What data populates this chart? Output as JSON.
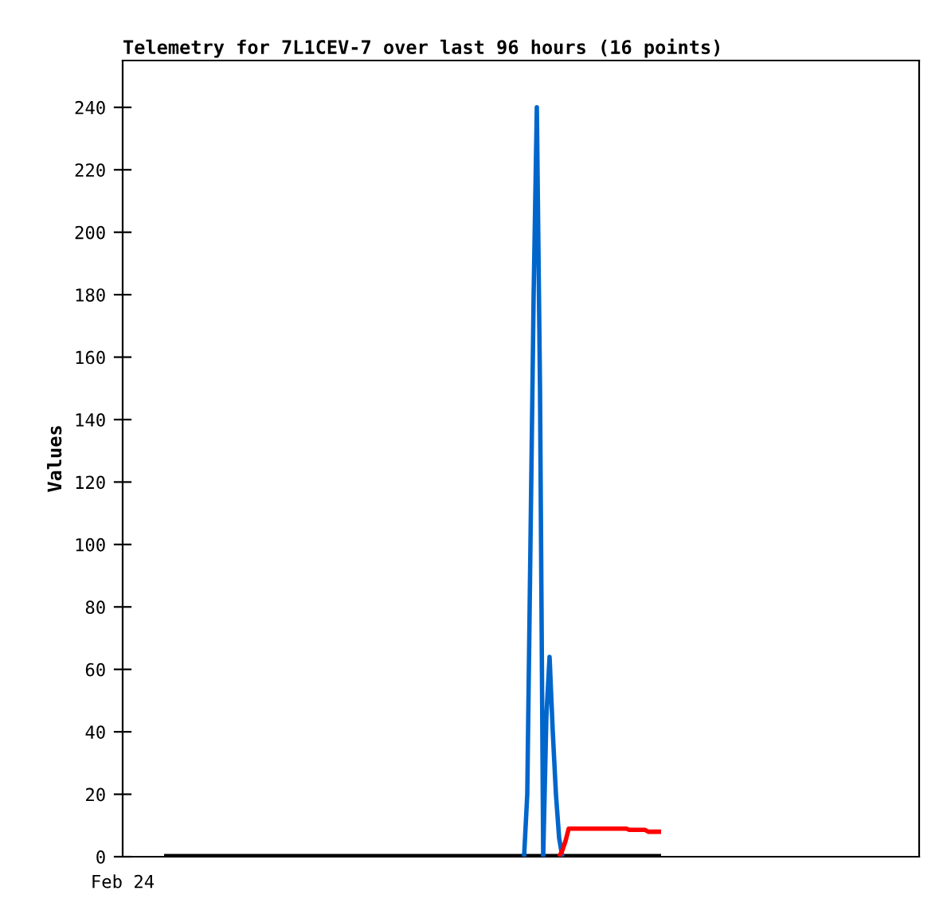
{
  "chart_data": {
    "type": "line",
    "title": "Telemetry for 7L1CEV-7 over last 96 hours (16 points)",
    "ylabel": "Values",
    "annotations": [
      "Feb 24"
    ],
    "categories": [
      null,
      null,
      null,
      null,
      null,
      null,
      null,
      null,
      null,
      null,
      null,
      null,
      null,
      null,
      null,
      null,
      null,
      null,
      null,
      null,
      null,
      null,
      null,
      null,
      null,
      null,
      null,
      null,
      null,
      null,
      null,
      null,
      null,
      null,
      null,
      null,
      null,
      null,
      null,
      null,
      null,
      null,
      null,
      null,
      null,
      null,
      null,
      null,
      null,
      null,
      null,
      null,
      null,
      null,
      null,
      null,
      null,
      null,
      null,
      null,
      null,
      null,
      null,
      null,
      null,
      null,
      null,
      null,
      null,
      null,
      null,
      null,
      null,
      null,
      null,
      null,
      null,
      null,
      null,
      null,
      null,
      null,
      null,
      null,
      null,
      null,
      null,
      null,
      null,
      null,
      null,
      null,
      null,
      null,
      null,
      null,
      null,
      null,
      null,
      null,
      null,
      null,
      null,
      null,
      null,
      null,
      null,
      null,
      null,
      null,
      null,
      null,
      null,
      null,
      null,
      null,
      null,
      null,
      null,
      null,
      null,
      null,
      null,
      null,
      null,
      null,
      null,
      null,
      null,
      null,
      null,
      null,
      null,
      null,
      null,
      null,
      null,
      null,
      null,
      null,
      null,
      null,
      null,
      null,
      null,
      null,
      null,
      null,
      null,
      null,
      null,
      null,
      null,
      null,
      null,
      null,
      null
    ],
    "ylim": [
      0,
      255
    ],
    "yticks": [
      0,
      20,
      40,
      60,
      80,
      100,
      120,
      140,
      160,
      180,
      200,
      220,
      240
    ],
    "marker": "none",
    "line_style": "solid",
    "series": [
      {
        "color": "#000000",
        "values": [
          0,
          0,
          0,
          0,
          0,
          0,
          0,
          0,
          0,
          0,
          0,
          0,
          0,
          0,
          0,
          0,
          0,
          0,
          0,
          0,
          0,
          0,
          0,
          0,
          0,
          0,
          0,
          0,
          0,
          0,
          0,
          0,
          0,
          0,
          0,
          0,
          0,
          0,
          0,
          0,
          0,
          0,
          0,
          0,
          0,
          0,
          0,
          0,
          0,
          0,
          0,
          0,
          0,
          0,
          0,
          0,
          0,
          0,
          0,
          0,
          0,
          0,
          0,
          0,
          0,
          0,
          0,
          0,
          0,
          0,
          0,
          0,
          0,
          0,
          0,
          0,
          0,
          0,
          0,
          0,
          0,
          0,
          0,
          0,
          0,
          0,
          0,
          0,
          0,
          0,
          0,
          0,
          0,
          0,
          0,
          0,
          0,
          0,
          0,
          0,
          0,
          0,
          0,
          0,
          0,
          0,
          0,
          0,
          0,
          0,
          0,
          0,
          0,
          0,
          0,
          0,
          0,
          0,
          0,
          0,
          0,
          0,
          0,
          0,
          0,
          0,
          0,
          0,
          0,
          0,
          0,
          0,
          0,
          0,
          0,
          0,
          0,
          0,
          0,
          0,
          0,
          0,
          0,
          0,
          0,
          0,
          0,
          0,
          0,
          0,
          0,
          0,
          0,
          0,
          0,
          0,
          0
        ]
      },
      {
        "color": "#0066cc",
        "values": [
          null,
          null,
          null,
          null,
          null,
          null,
          null,
          null,
          null,
          null,
          null,
          null,
          null,
          null,
          null,
          null,
          null,
          null,
          null,
          null,
          null,
          null,
          null,
          null,
          null,
          null,
          null,
          null,
          null,
          null,
          null,
          null,
          null,
          null,
          null,
          null,
          null,
          null,
          null,
          null,
          null,
          null,
          null,
          null,
          null,
          null,
          null,
          null,
          null,
          null,
          null,
          null,
          null,
          null,
          null,
          null,
          null,
          null,
          null,
          null,
          null,
          null,
          null,
          null,
          null,
          null,
          null,
          null,
          null,
          null,
          null,
          null,
          null,
          null,
          null,
          null,
          null,
          null,
          null,
          null,
          null,
          null,
          null,
          null,
          null,
          null,
          null,
          null,
          null,
          null,
          null,
          null,
          null,
          null,
          null,
          null,
          null,
          null,
          null,
          null,
          null,
          null,
          null,
          null,
          null,
          null,
          null,
          null,
          null,
          null,
          null,
          null,
          null,
          0,
          20,
          100,
          180,
          240,
          150,
          0,
          45,
          64,
          40,
          20,
          6,
          0,
          null,
          null,
          null,
          null,
          null,
          null,
          null,
          null,
          null,
          null,
          null,
          null,
          null,
          null,
          null,
          null,
          null,
          null,
          null,
          null,
          null,
          null,
          null,
          null,
          null,
          null,
          null,
          null,
          null,
          null,
          null
        ]
      },
      {
        "color": "#ff0000",
        "values": [
          null,
          null,
          null,
          null,
          null,
          null,
          null,
          null,
          null,
          null,
          null,
          null,
          null,
          null,
          null,
          null,
          null,
          null,
          null,
          null,
          null,
          null,
          null,
          null,
          null,
          null,
          null,
          null,
          null,
          null,
          null,
          null,
          null,
          null,
          null,
          null,
          null,
          null,
          null,
          null,
          null,
          null,
          null,
          null,
          null,
          null,
          null,
          null,
          null,
          null,
          null,
          null,
          null,
          null,
          null,
          null,
          null,
          null,
          null,
          null,
          null,
          null,
          null,
          null,
          null,
          null,
          null,
          null,
          null,
          null,
          null,
          null,
          null,
          null,
          null,
          null,
          null,
          null,
          null,
          null,
          null,
          null,
          null,
          null,
          null,
          null,
          null,
          null,
          null,
          null,
          null,
          null,
          null,
          null,
          null,
          null,
          null,
          null,
          null,
          null,
          null,
          null,
          null,
          null,
          null,
          null,
          null,
          null,
          null,
          null,
          null,
          null,
          null,
          null,
          null,
          null,
          null,
          null,
          null,
          null,
          null,
          null,
          null,
          null,
          0,
          2,
          5,
          9,
          9,
          9,
          9,
          9,
          9,
          9,
          9,
          9,
          9,
          9,
          9,
          9,
          9,
          9,
          9,
          9,
          9,
          9,
          8.6,
          8.6,
          8.6,
          8.6,
          8.6,
          8.6,
          8,
          8,
          8,
          8,
          8
        ]
      }
    ]
  }
}
